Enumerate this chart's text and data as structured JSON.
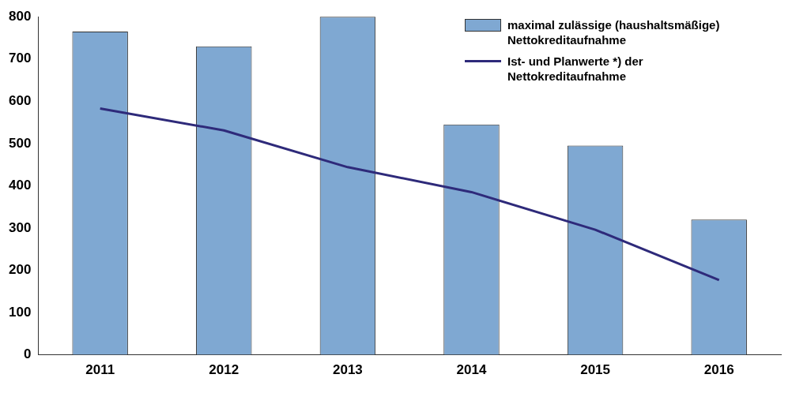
{
  "chart_data": {
    "type": "bar",
    "categories": [
      "2011",
      "2012",
      "2013",
      "2014",
      "2015",
      "2016"
    ],
    "series": [
      {
        "name": "maximal zulässige (haushaltsmäßige) Nettokreditaufnahme",
        "color": "#7fa8d2",
        "values": [
          765,
          730,
          800,
          545,
          495,
          320
        ]
      },
      {
        "name": "Ist- und Planwerte *) der Nettokreditaufnahme",
        "type": "line",
        "color": "#2e2a7a",
        "values": [
          583,
          531,
          444,
          385,
          296,
          177
        ]
      }
    ],
    "ylim": [
      0,
      800
    ],
    "yticks": [
      0,
      100,
      200,
      300,
      400,
      500,
      600,
      700,
      800
    ],
    "grid": false,
    "legend": "top right",
    "marker": "none"
  }
}
